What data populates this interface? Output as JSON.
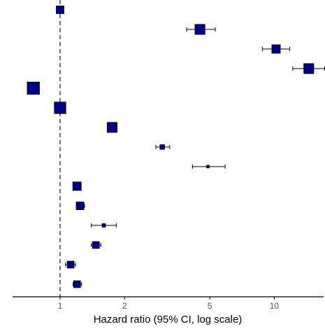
{
  "chart_data": {
    "type": "forest",
    "xlabel": "Hazard ratio (95% CI, log scale)",
    "x_scale": "log",
    "xlim": [
      0.6,
      17
    ],
    "xticks": [
      {
        "value": 1,
        "label": "1"
      },
      {
        "value": 2,
        "label": "2"
      },
      {
        "value": 5,
        "label": "5"
      },
      {
        "value": 10,
        "label": "10"
      }
    ],
    "reference_line": {
      "value": 1,
      "style": "dashed"
    },
    "grid": false,
    "legend": "none",
    "rows": [
      {
        "hr": 1.0,
        "lower": 1.0,
        "upper": 1.0,
        "size": 1.0
      },
      {
        "hr": 4.5,
        "lower": 3.9,
        "upper": 5.3,
        "size": 1.3
      },
      {
        "hr": 10.2,
        "lower": 8.8,
        "upper": 11.8,
        "size": 1.1
      },
      {
        "hr": 14.5,
        "lower": 12.2,
        "upper": 17.2,
        "size": 1.3
      },
      {
        "hr": 0.75,
        "lower": 0.75,
        "upper": 0.75,
        "size": 1.6
      },
      {
        "hr": 1.0,
        "lower": 1.0,
        "upper": 1.0,
        "size": 1.5
      },
      {
        "hr": 1.75,
        "lower": 1.75,
        "upper": 1.75,
        "size": 1.3
      },
      {
        "hr": 3.0,
        "lower": 2.8,
        "upper": 3.25,
        "size": 0.6
      },
      {
        "hr": 4.9,
        "lower": 4.15,
        "upper": 5.9,
        "size": 0.35
      },
      {
        "hr": 1.2,
        "lower": 1.2,
        "upper": 1.2,
        "size": 1.1
      },
      {
        "hr": 1.24,
        "lower": 1.19,
        "upper": 1.3,
        "size": 1.0
      },
      {
        "hr": 1.6,
        "lower": 1.4,
        "upper": 1.83,
        "size": 0.45
      },
      {
        "hr": 1.47,
        "lower": 1.4,
        "upper": 1.55,
        "size": 0.9
      },
      {
        "hr": 1.12,
        "lower": 1.06,
        "upper": 1.18,
        "size": 0.9
      },
      {
        "hr": 1.2,
        "lower": 1.15,
        "upper": 1.26,
        "size": 0.9
      }
    ],
    "colors": {
      "marker_fill": "#000080",
      "marker_stroke": "#000000",
      "whisker": "#000000",
      "axis": "#000000"
    }
  }
}
